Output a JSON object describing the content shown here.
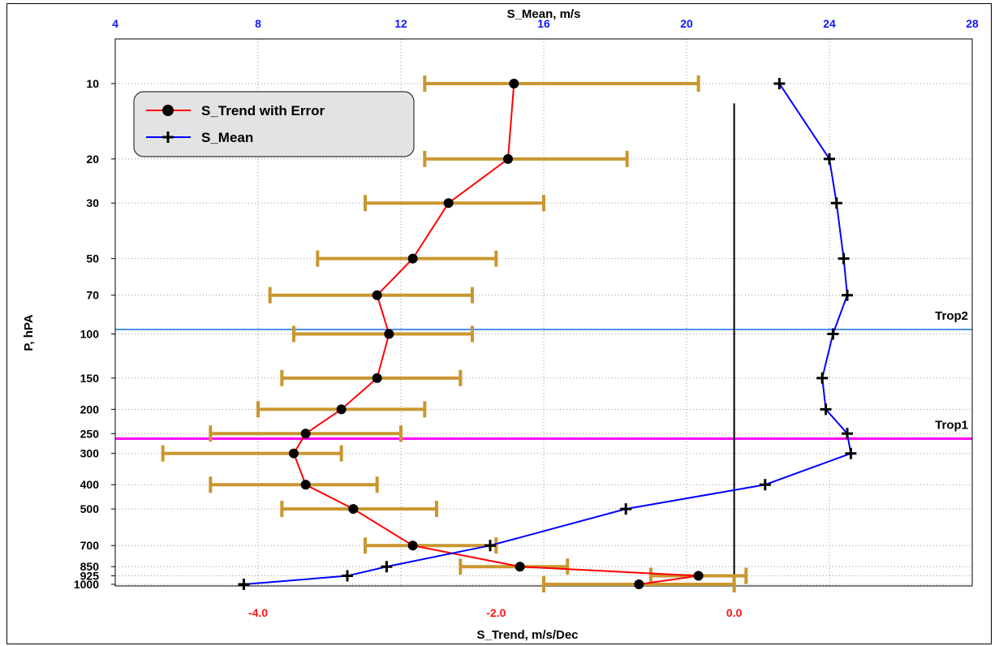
{
  "chart_data": {
    "type": "line",
    "top_axis": {
      "label": "S_Mean, m/s",
      "range": [
        4,
        28
      ],
      "ticks": [
        4,
        8,
        12,
        16,
        20,
        24,
        28
      ],
      "color": "#1414ff"
    },
    "bottom_axis": {
      "label": "S_Trend, m/s/Dec",
      "range": [
        -5.2,
        2.0
      ],
      "ticks": [
        -4.0,
        -2.0,
        0.0
      ],
      "tick_labels": [
        "-4.0",
        "-2.0",
        "0.0"
      ],
      "color": "#ff1414"
    },
    "y_axis": {
      "label": "P, hPA",
      "scale": "log",
      "inverted": true,
      "range": [
        8.5,
        1000
      ],
      "ticks": [
        10,
        20,
        30,
        50,
        70,
        100,
        150,
        200,
        250,
        300,
        400,
        500,
        700,
        850,
        925,
        1000
      ],
      "tick_labels": [
        "10",
        "20",
        "30",
        "50",
        "70",
        "100",
        "150",
        "200",
        "250",
        "300",
        "400",
        "500",
        "700",
        "850",
        "925",
        "1000"
      ]
    },
    "grid": true,
    "legend_position": "top-left",
    "series": [
      {
        "name": "S_Trend with Error",
        "axis": "bottom",
        "color": "#ff0000",
        "marker": "circle",
        "points": [
          {
            "p": 10,
            "x": -1.85,
            "lo": -2.6,
            "hi": -0.3
          },
          {
            "p": 20,
            "x": -1.9,
            "lo": -2.6,
            "hi": -0.9
          },
          {
            "p": 30,
            "x": -2.4,
            "lo": -3.1,
            "hi": -1.6
          },
          {
            "p": 50,
            "x": -2.7,
            "lo": -3.5,
            "hi": -2.0
          },
          {
            "p": 70,
            "x": -3.0,
            "lo": -3.9,
            "hi": -2.2
          },
          {
            "p": 100,
            "x": -2.9,
            "lo": -3.7,
            "hi": -2.2
          },
          {
            "p": 150,
            "x": -3.0,
            "lo": -3.8,
            "hi": -2.3
          },
          {
            "p": 200,
            "x": -3.3,
            "lo": -4.0,
            "hi": -2.6
          },
          {
            "p": 250,
            "x": -3.6,
            "lo": -4.4,
            "hi": -2.8
          },
          {
            "p": 300,
            "x": -3.7,
            "lo": -4.8,
            "hi": -3.3
          },
          {
            "p": 400,
            "x": -3.6,
            "lo": -4.4,
            "hi": -3.0
          },
          {
            "p": 500,
            "x": -3.2,
            "lo": -3.8,
            "hi": -2.5
          },
          {
            "p": 700,
            "x": -2.7,
            "lo": -3.1,
            "hi": -2.0
          },
          {
            "p": 850,
            "x": -1.8,
            "lo": -2.3,
            "hi": -1.4
          },
          {
            "p": 925,
            "x": -0.3,
            "lo": -0.7,
            "hi": 0.1
          },
          {
            "p": 1000,
            "x": -0.8,
            "lo": -1.6,
            "hi": 0.0
          }
        ]
      },
      {
        "name": "S_Mean",
        "axis": "top",
        "color": "#0000ff",
        "marker": "plus",
        "points": [
          {
            "p": 10,
            "x": 22.6
          },
          {
            "p": 20,
            "x": 24.0
          },
          {
            "p": 30,
            "x": 24.2
          },
          {
            "p": 50,
            "x": 24.4
          },
          {
            "p": 70,
            "x": 24.5
          },
          {
            "p": 100,
            "x": 24.1
          },
          {
            "p": 150,
            "x": 23.8
          },
          {
            "p": 200,
            "x": 23.9
          },
          {
            "p": 250,
            "x": 24.5
          },
          {
            "p": 300,
            "x": 24.6
          },
          {
            "p": 400,
            "x": 22.2
          },
          {
            "p": 500,
            "x": 18.3
          },
          {
            "p": 700,
            "x": 14.5
          },
          {
            "p": 850,
            "x": 11.6
          },
          {
            "p": 925,
            "x": 10.5
          },
          {
            "p": 1000,
            "x": 7.6
          }
        ]
      }
    ],
    "reference_lines": [
      {
        "label": "Trop2",
        "p": 96,
        "color": "#4f91f0"
      },
      {
        "label": "Trop1",
        "p": 262,
        "color": "#ff00ff"
      }
    ],
    "zero_line": {
      "axis": "bottom",
      "x": 0.0,
      "p_from": 12,
      "p_to": 1000,
      "color": "#000000"
    },
    "error_bar_color": "#c9962f"
  }
}
